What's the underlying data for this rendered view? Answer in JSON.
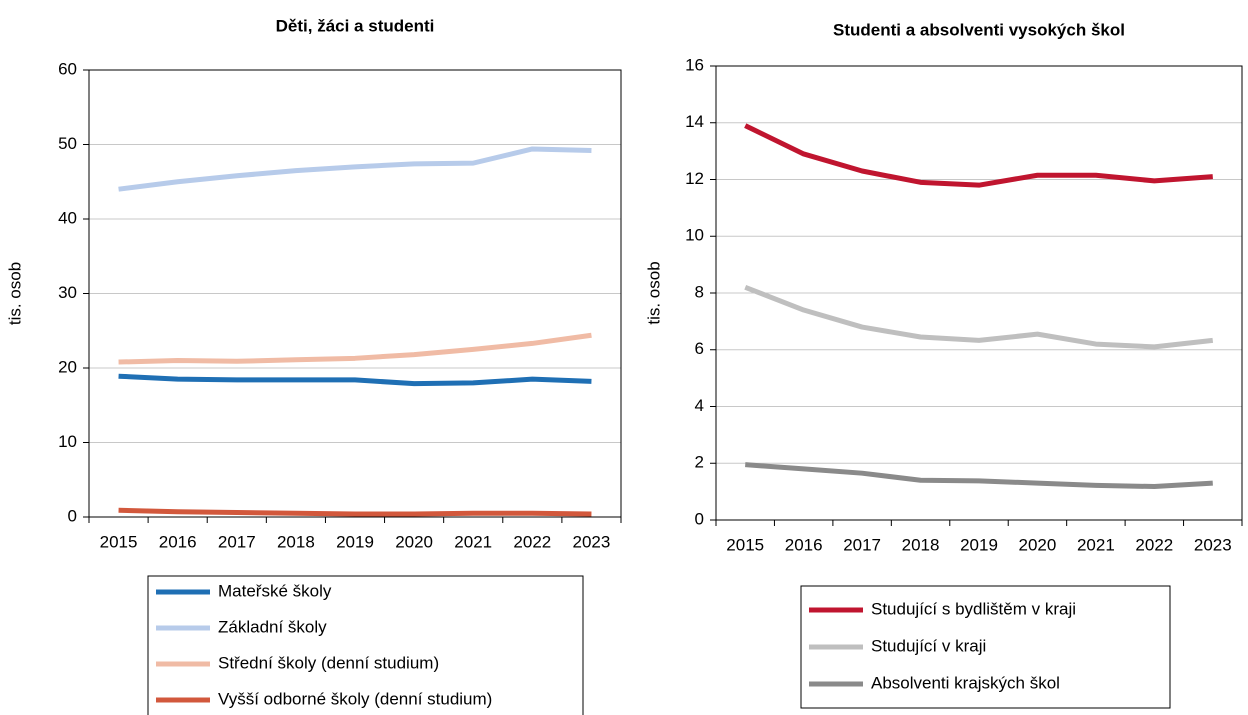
{
  "chart_data": [
    {
      "type": "line",
      "title": "Děti, žáci a studenti",
      "y_label": "tis. osob",
      "categories": [
        "2015",
        "2016",
        "2017",
        "2018",
        "2019",
        "2020",
        "2021",
        "2022",
        "2023"
      ],
      "ylim": [
        0,
        60
      ],
      "yticks": [
        0,
        10,
        20,
        30,
        40,
        50,
        60
      ],
      "grid": true,
      "series": [
        {
          "name": "Mateřské školy",
          "color": "#1f6fb4",
          "values": [
            18.9,
            18.5,
            18.4,
            18.4,
            18.4,
            17.9,
            18.0,
            18.5,
            18.2
          ]
        },
        {
          "name": "Základní školy",
          "color": "#b7cbea",
          "values": [
            44.0,
            45.0,
            45.8,
            46.5,
            47.0,
            47.4,
            47.5,
            49.4,
            49.2
          ]
        },
        {
          "name": "Střední školy (denní studium)",
          "color": "#f0bba5",
          "values": [
            20.8,
            21.0,
            20.9,
            21.1,
            21.3,
            21.8,
            22.5,
            23.3,
            24.4
          ]
        },
        {
          "name": "Vyšší odborné školy (denní studium)",
          "color": "#d2583c",
          "values": [
            0.9,
            0.7,
            0.6,
            0.5,
            0.4,
            0.4,
            0.5,
            0.5,
            0.4
          ]
        }
      ]
    },
    {
      "type": "line",
      "title": "Studenti a absolventi vysokých škol",
      "y_label": "tis. osob",
      "categories": [
        "2015",
        "2016",
        "2017",
        "2018",
        "2019",
        "2020",
        "2021",
        "2022",
        "2023"
      ],
      "ylim": [
        0,
        16
      ],
      "yticks": [
        0,
        2,
        4,
        6,
        8,
        10,
        12,
        14,
        16
      ],
      "grid": true,
      "series": [
        {
          "name": "Studující s bydlištěm v kraji",
          "color": "#c0152f",
          "values": [
            13.9,
            12.9,
            12.3,
            11.9,
            11.8,
            12.15,
            12.15,
            11.95,
            12.1
          ]
        },
        {
          "name": "Studující v kraji",
          "color": "#bfbfbf",
          "values": [
            8.2,
            7.4,
            6.8,
            6.45,
            6.33,
            6.55,
            6.2,
            6.1,
            6.33
          ]
        },
        {
          "name": "Absolventi krajských škol",
          "color": "#8a8a8a",
          "values": [
            1.95,
            1.8,
            1.65,
            1.4,
            1.38,
            1.3,
            1.22,
            1.18,
            1.3
          ]
        }
      ]
    }
  ]
}
